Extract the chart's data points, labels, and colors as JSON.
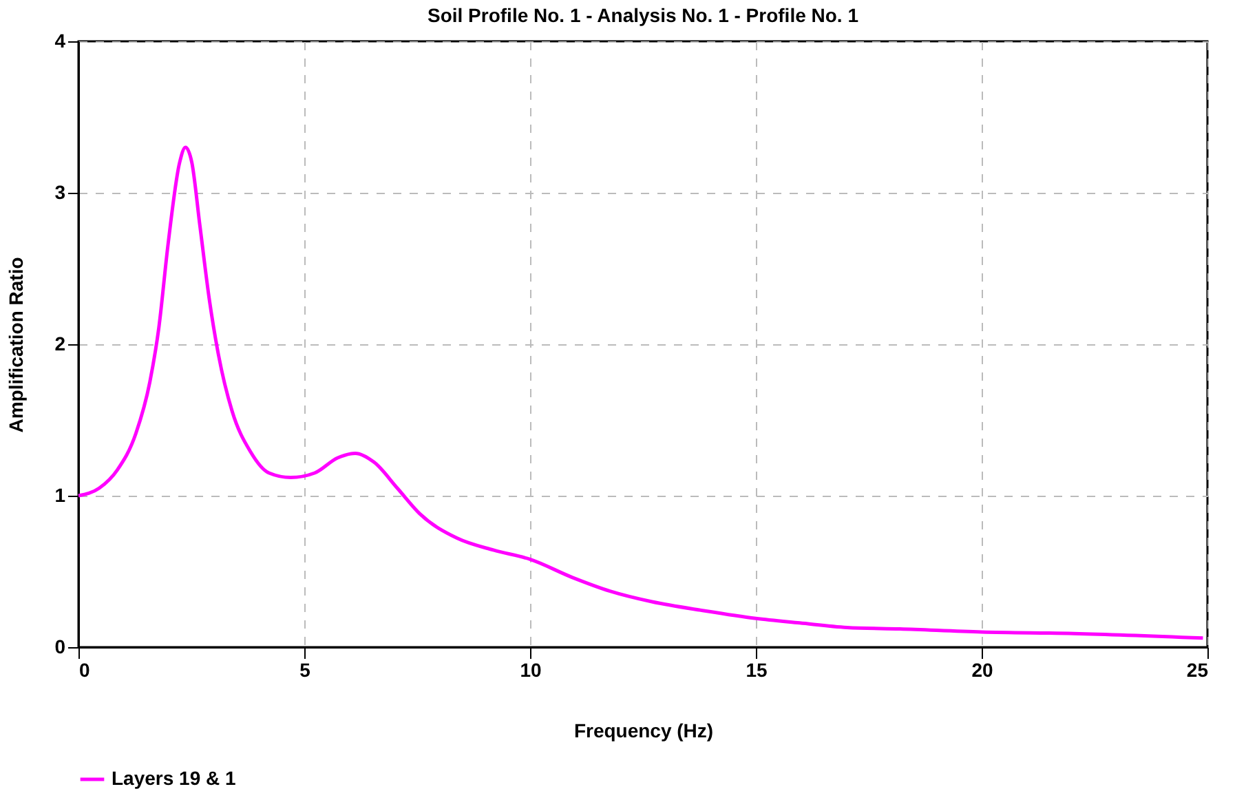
{
  "chart_data": {
    "type": "line",
    "title": "Soil Profile No.  1 - Analysis No.  1 - Profile No. 1",
    "xlabel": "Frequency (Hz)",
    "ylabel": "Amplification Ratio",
    "x": [
      0,
      0.46,
      0.86,
      1.27,
      1.58,
      1.78,
      1.98,
      2.24,
      2.37,
      2.51,
      2.69,
      2.9,
      3.1,
      3.4,
      3.81,
      4.22,
      4.7,
      5.23,
      5.74,
      6.13,
      6.55,
      7.06,
      7.56,
      8.38,
      9.2,
      10,
      10.94,
      11.77,
      12.7,
      13.87,
      15,
      15.97,
      17.02,
      18.19,
      20,
      22.04,
      24.9
    ],
    "series": [
      {
        "name": "Layers 19 & 1",
        "color": "#ff00ff",
        "values": [
          1.0,
          1.05,
          1.17,
          1.41,
          1.75,
          2.11,
          2.65,
          3.2,
          3.3,
          3.2,
          2.78,
          2.29,
          1.93,
          1.56,
          1.29,
          1.15,
          1.12,
          1.15,
          1.25,
          1.28,
          1.22,
          1.05,
          0.88,
          0.72,
          0.64,
          0.58,
          0.46,
          0.37,
          0.3,
          0.24,
          0.19,
          0.16,
          0.13,
          0.12,
          0.1,
          0.09,
          0.06
        ]
      }
    ],
    "xlim": [
      0,
      25
    ],
    "xticks": [
      0,
      5,
      10,
      15,
      20,
      25
    ],
    "ylim": [
      0,
      4
    ],
    "yticks": [
      0,
      1,
      2,
      3,
      4
    ],
    "grid": true,
    "legend": "bottom",
    "line_style": "solid",
    "marker": "none"
  }
}
